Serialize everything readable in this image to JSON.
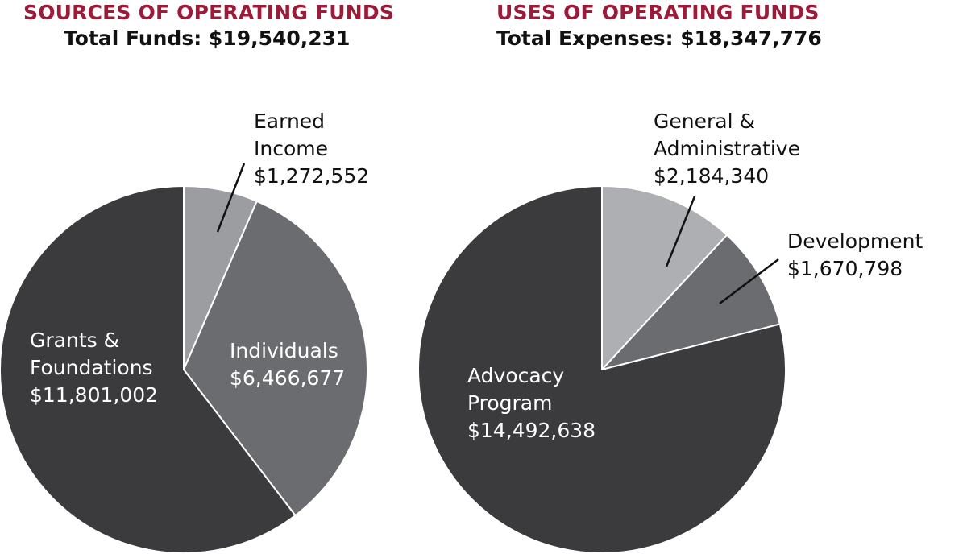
{
  "colors": {
    "heading": "#9b1b38",
    "dark": "#3b3b3d",
    "medium": "#6b6c70",
    "light": "#9c9da1",
    "lighter": "#aeafb3",
    "edge": "#ffffff",
    "leader": "#111111"
  },
  "sources": {
    "heading": "SOURCES OF OPERATING FUNDS",
    "total": "Total Funds: $19,540,231"
  },
  "uses": {
    "heading": "USES OF OPERATING FUNDS",
    "total": "Total Expenses: $18,347,776"
  },
  "chart_data": [
    {
      "type": "pie",
      "title": "SOURCES OF OPERATING FUNDS",
      "subtitle": "Total Funds: $19,540,231",
      "slices": [
        {
          "label_lines": [
            "Earned",
            "Income"
          ],
          "value_text": "$1,272,552",
          "value": 1272552,
          "color": "#9c9da1"
        },
        {
          "label_lines": [
            "Individuals"
          ],
          "value_text": "$6,466,677",
          "value": 6466677,
          "color": "#6b6c70"
        },
        {
          "label_lines": [
            "Grants &",
            "Foundations"
          ],
          "value_text": "$11,801,002",
          "value": 11801002,
          "color": "#3b3b3d"
        }
      ]
    },
    {
      "type": "pie",
      "title": "USES OF OPERATING FUNDS",
      "subtitle": "Total Expenses: $18,347,776",
      "slices": [
        {
          "label_lines": [
            "General &",
            "Administrative"
          ],
          "value_text": "$2,184,340",
          "value": 2184340,
          "color": "#aeafb3"
        },
        {
          "label_lines": [
            "Development"
          ],
          "value_text": "$1,670,798",
          "value": 1670798,
          "color": "#6b6c70"
        },
        {
          "label_lines": [
            "Advocacy",
            "Program"
          ],
          "value_text": "$14,492,638",
          "value": 14492638,
          "color": "#3b3b3d"
        }
      ]
    }
  ]
}
